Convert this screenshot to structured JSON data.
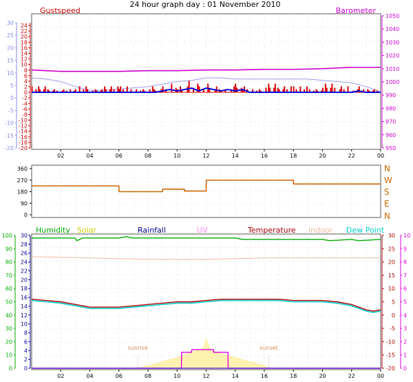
{
  "title": "24 hour graph day : 01 November 2010",
  "chart_data": [
    {
      "type": "line",
      "name": "top-panel",
      "headers": {
        "left": "Gustspeed",
        "right": "Barometer"
      },
      "left_axis": {
        "ticks": [
          -20,
          -18,
          -16,
          -14,
          -12,
          -10,
          -8,
          -6,
          -4,
          -2,
          0,
          2,
          4,
          6,
          8,
          10,
          12,
          14,
          16,
          18,
          20,
          22,
          24
        ],
        "color": "#cc0000",
        "outer_ticks": [
          -20,
          -15,
          -10,
          -5,
          0,
          5,
          10,
          15,
          20,
          25,
          30
        ],
        "outer_color": "#8888ee",
        "ylim": [
          -20,
          25
        ],
        "outer_ylim": [
          -20,
          30
        ]
      },
      "right_axis": {
        "ticks": [
          950,
          960,
          970,
          980,
          990,
          1000,
          1010,
          1020,
          1030,
          1040,
          1050
        ],
        "ylim": [
          950,
          1050
        ],
        "color": "#cc00cc"
      },
      "x_ticks": [
        "02",
        "04",
        "06",
        "08",
        "10",
        "12",
        "14",
        "16",
        "18",
        "20",
        "22",
        "00"
      ],
      "x_range_hours": [
        0,
        24
      ],
      "series": [
        {
          "name": "Barometer",
          "color": "#cc00cc",
          "axis": "right",
          "x": [
            0,
            2,
            4,
            6,
            8,
            10,
            12,
            14,
            16,
            18,
            20,
            22,
            24
          ],
          "y": [
            1009,
            1008,
            1008,
            1008,
            1008.5,
            1008.5,
            1009,
            1009,
            1009.5,
            1009.5,
            1010,
            1011,
            1011
          ]
        },
        {
          "color": "#9999ee",
          "axis": "outer",
          "x": [
            0,
            1,
            2,
            3,
            4,
            5,
            6,
            7,
            8,
            9,
            10,
            11,
            12,
            13,
            14,
            15,
            16,
            17,
            18,
            19,
            20,
            21,
            22,
            23,
            24
          ],
          "y": [
            8,
            7.5,
            6.5,
            4.5,
            3,
            3,
            3.5,
            4,
            4.5,
            5.5,
            6.5,
            7,
            8,
            8,
            7.5,
            7.5,
            7.5,
            7.5,
            7.5,
            7.5,
            7,
            6.5,
            6,
            4.5,
            2.5
          ]
        },
        {
          "name": "Gustspeed",
          "color": "#dd0000",
          "axis": "left",
          "style": "spiky",
          "x": [
            0,
            1,
            2,
            3,
            4,
            5,
            6,
            7,
            8,
            8.5,
            9,
            9.5,
            10,
            10.5,
            11,
            11.5,
            12,
            12.5,
            13,
            13.5,
            14,
            14.5,
            15,
            16,
            17,
            18,
            19,
            20,
            21,
            22,
            22.5,
            23,
            24
          ],
          "y": [
            2,
            1,
            1,
            2,
            1,
            2,
            2,
            1,
            2,
            1,
            2,
            3,
            2,
            4,
            3,
            2,
            3,
            2,
            1,
            2,
            3,
            2,
            1,
            3,
            2,
            2,
            1,
            3,
            2,
            1,
            2,
            1,
            0
          ]
        },
        {
          "color": "#0000dd",
          "axis": "left",
          "x": [
            0,
            8.5,
            9,
            9.5,
            10,
            10.5,
            11,
            11.5,
            12,
            12.5,
            13,
            13.5,
            14,
            14.5,
            15,
            22,
            22.5,
            23,
            24
          ],
          "y": [
            0,
            0,
            0.5,
            1,
            0.5,
            1,
            1.5,
            0.5,
            1.5,
            1,
            0.5,
            1,
            0.5,
            1,
            0,
            0,
            0.5,
            0,
            0
          ]
        }
      ]
    },
    {
      "type": "line",
      "name": "wind-direction-panel",
      "left_axis": {
        "ticks": [
          0,
          90,
          180,
          270,
          360
        ],
        "ylim": [
          0,
          360
        ]
      },
      "right_labels": [
        "N",
        "W",
        "S",
        "E",
        "N"
      ],
      "x_range_hours": [
        0,
        24
      ],
      "series": [
        {
          "color": "#cc6600",
          "step": true,
          "x": [
            0,
            6,
            6.01,
            9,
            9.01,
            10.5,
            10.51,
            12,
            12.01,
            18,
            18.01,
            24
          ],
          "y": [
            225,
            225,
            180,
            180,
            200,
            200,
            185,
            185,
            270,
            270,
            240,
            240
          ]
        }
      ]
    },
    {
      "type": "line",
      "name": "bottom-panel",
      "headers": [
        {
          "label": "Humidity",
          "color": "#00aa00"
        },
        {
          "label": "Solar",
          "color": "#cccc00"
        },
        {
          "label": "Rainfall",
          "color": "#000088"
        },
        {
          "label": "UV",
          "color": "#ff88ff"
        },
        {
          "label": "Temperature",
          "color": "#aa0000"
        },
        {
          "label": "Indoor",
          "color": "#f0b8a0"
        },
        {
          "label": "Dew Point",
          "color": "#00cccc"
        }
      ],
      "axes": {
        "humidity": {
          "ticks": [
            0,
            10,
            20,
            30,
            40,
            50,
            60,
            70,
            80,
            90,
            100
          ],
          "ylim": [
            0,
            100
          ],
          "color": "#00aa00"
        },
        "rainfall": {
          "ticks": [
            0,
            2,
            4,
            6,
            8,
            10,
            12,
            14,
            16,
            18,
            20,
            22,
            24,
            26,
            28,
            30
          ],
          "ylim": [
            0,
            30
          ],
          "color": "#000088"
        },
        "temperature": {
          "ticks": [
            -20,
            -15,
            -10,
            -5,
            0,
            5,
            10,
            15,
            20,
            25,
            30
          ],
          "ylim": [
            -20,
            30
          ],
          "color": "#aa0000"
        },
        "uv": {
          "ticks": [
            0,
            1,
            2,
            3,
            4,
            5,
            6,
            7,
            8,
            9,
            10
          ],
          "ylim": [
            0,
            10
          ],
          "color": "#dd00dd"
        }
      },
      "x_ticks": [
        "02",
        "04",
        "06",
        "08",
        "10",
        "12",
        "14",
        "16",
        "18",
        "20",
        "22",
        "00"
      ],
      "x_range_hours": [
        0,
        24
      ],
      "annotations": [
        {
          "text": "sunrise",
          "x": 7.3
        },
        {
          "text": "sunset",
          "x": 16.3
        }
      ],
      "series": [
        {
          "name": "Humidity",
          "color": "#00aa00",
          "axis": "humidity",
          "x": [
            0,
            3,
            3.1,
            3.5,
            6,
            6.5,
            7,
            14,
            14.5,
            20,
            20.5,
            22,
            22.5,
            24
          ],
          "y": [
            98,
            98,
            96,
            98,
            98,
            99,
            98,
            98,
            97,
            97,
            96,
            97,
            96,
            97
          ]
        },
        {
          "name": "Indoor",
          "color": "#f0b8a0",
          "axis": "temperature",
          "x": [
            0,
            4,
            8,
            12,
            16,
            20,
            24
          ],
          "y": [
            22,
            21.5,
            21,
            21,
            21.5,
            21.5,
            21.5
          ]
        },
        {
          "name": "Temperature",
          "color": "#aa0000",
          "axis": "temperature",
          "x": [
            0,
            1,
            2,
            3,
            4,
            5,
            6,
            7,
            8,
            9,
            10,
            11,
            12,
            13,
            14,
            15,
            16,
            17,
            18,
            19,
            20,
            21,
            22,
            23,
            23.5,
            24
          ],
          "y": [
            6,
            5.5,
            5,
            4,
            3,
            3,
            3,
            3.5,
            4,
            4.5,
            5,
            5,
            5.5,
            6,
            6,
            6,
            6,
            6,
            5.5,
            5.5,
            5.5,
            5,
            4,
            2,
            1.5,
            2
          ]
        },
        {
          "name": "Dew Point",
          "color": "#00cccc",
          "axis": "temperature",
          "x": [
            0,
            1,
            2,
            3,
            4,
            5,
            6,
            7,
            8,
            9,
            10,
            11,
            12,
            13,
            14,
            15,
            16,
            17,
            18,
            19,
            20,
            21,
            22,
            23,
            23.5,
            24
          ],
          "y": [
            5.5,
            5,
            4.5,
            3.5,
            2.5,
            2.5,
            2.5,
            3,
            3.5,
            4,
            4.5,
            4.5,
            5,
            5.5,
            5.5,
            5.5,
            5.5,
            5.5,
            5,
            5,
            5,
            4.5,
            3.5,
            1.5,
            1,
            1.5
          ]
        },
        {
          "name": "Solar",
          "color": "#fff2b0",
          "axis": "humidity",
          "area": true,
          "x": [
            7.3,
            8,
            9,
            10,
            11,
            11.8,
            12,
            12.3,
            13,
            14,
            15,
            16,
            16.3
          ],
          "y": [
            0,
            2,
            5,
            8,
            12,
            15,
            22,
            14,
            11,
            8,
            5,
            2,
            0
          ]
        },
        {
          "name": "UV",
          "color": "#dd00dd",
          "axis": "uv",
          "step": true,
          "x": [
            0,
            10.3,
            10.31,
            11,
            11.01,
            12.5,
            12.51,
            13.5,
            13.51,
            24
          ],
          "y": [
            0,
            0,
            1.2,
            1.2,
            1.4,
            1.4,
            1.2,
            1.2,
            0,
            0
          ]
        },
        {
          "name": "Rainfall",
          "color": "#000088",
          "axis": "rainfall",
          "x": [
            0,
            24
          ],
          "y": [
            0,
            0
          ]
        }
      ]
    }
  ]
}
